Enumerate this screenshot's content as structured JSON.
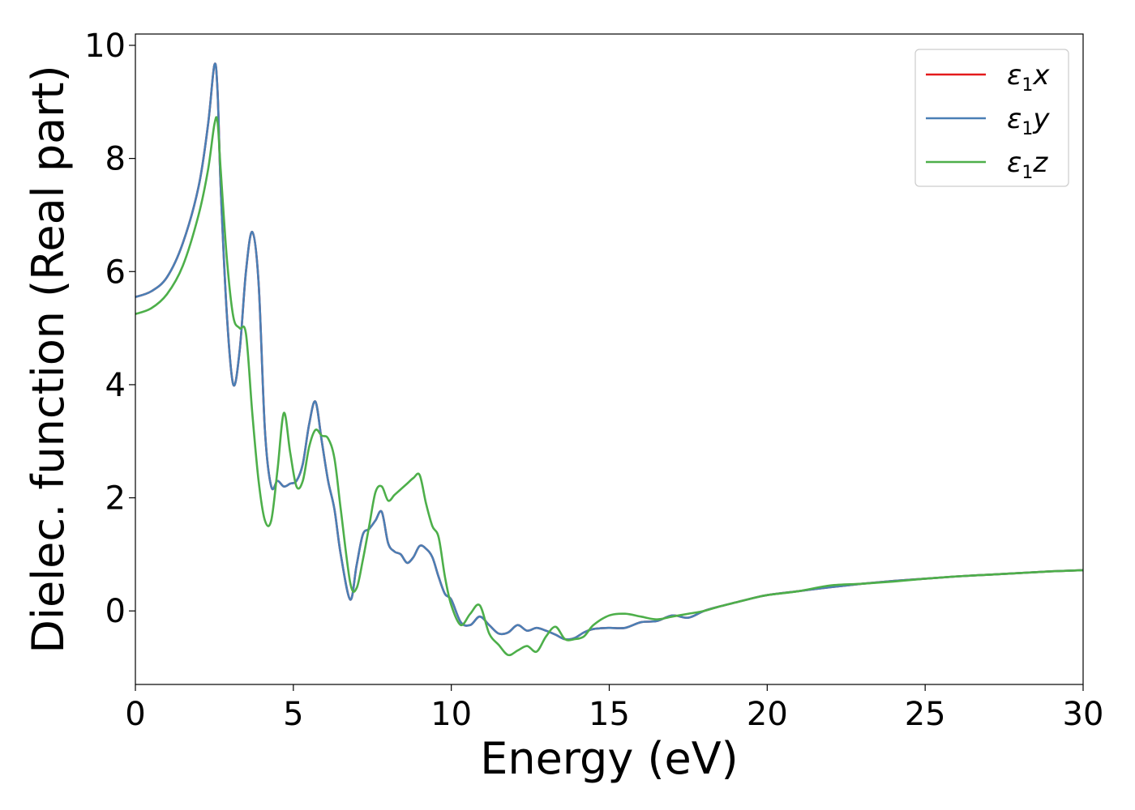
{
  "chart_data": {
    "type": "line",
    "title": "",
    "xlabel": "Energy (eV)",
    "ylabel": "Dielec. function (Real part)",
    "xlim": [
      0,
      30
    ],
    "ylim": [
      -1.3,
      10.2
    ],
    "xticks": [
      0,
      5,
      10,
      15,
      20,
      25,
      30
    ],
    "yticks": [
      0,
      2,
      4,
      6,
      8,
      10
    ],
    "grid": false,
    "legend": {
      "placement": "top-right",
      "entries": [
        {
          "symbol": "ε",
          "sub": "1",
          "var": "x"
        },
        {
          "symbol": "ε",
          "sub": "1",
          "var": "y"
        },
        {
          "symbol": "ε",
          "sub": "1",
          "var": "z"
        }
      ]
    },
    "series": [
      {
        "name": "ε1x",
        "color": "#e41a1c",
        "x": [
          0,
          0.5,
          1.0,
          1.5,
          2.0,
          2.3,
          2.5,
          2.6,
          2.7,
          2.9,
          3.1,
          3.3,
          3.5,
          3.7,
          3.9,
          4.1,
          4.3,
          4.5,
          4.7,
          4.9,
          5.1,
          5.3,
          5.5,
          5.7,
          5.9,
          6.1,
          6.3,
          6.5,
          6.8,
          7.0,
          7.2,
          7.4,
          7.6,
          7.8,
          8.0,
          8.2,
          8.4,
          8.6,
          8.8,
          9.0,
          9.2,
          9.4,
          9.6,
          9.8,
          10.0,
          10.3,
          10.6,
          10.9,
          11.2,
          11.5,
          11.8,
          12.1,
          12.4,
          12.7,
          13.0,
          13.3,
          13.6,
          13.9,
          14.2,
          14.5,
          15.0,
          15.5,
          16.0,
          16.5,
          17.0,
          17.5,
          18.0,
          18.5,
          19.0,
          19.5,
          20.0,
          21.0,
          22.0,
          23.0,
          24.0,
          25.0,
          26.0,
          27.0,
          28.0,
          29.0,
          30.0
        ],
        "y": [
          5.55,
          5.65,
          5.9,
          6.5,
          7.5,
          8.6,
          9.65,
          9.2,
          7.5,
          5.2,
          4.0,
          4.6,
          6.0,
          6.7,
          5.8,
          3.2,
          2.2,
          2.3,
          2.2,
          2.25,
          2.3,
          2.6,
          3.3,
          3.7,
          3.0,
          2.3,
          1.8,
          1.0,
          0.2,
          0.8,
          1.35,
          1.45,
          1.6,
          1.75,
          1.2,
          1.05,
          1.0,
          0.85,
          0.95,
          1.15,
          1.1,
          0.95,
          0.6,
          0.3,
          0.2,
          -0.2,
          -0.25,
          -0.1,
          -0.25,
          -0.4,
          -0.38,
          -0.25,
          -0.35,
          -0.3,
          -0.35,
          -0.42,
          -0.5,
          -0.48,
          -0.38,
          -0.32,
          -0.3,
          -0.3,
          -0.2,
          -0.18,
          -0.08,
          -0.12,
          0.0,
          0.08,
          0.15,
          0.22,
          0.28,
          0.35,
          0.42,
          0.48,
          0.53,
          0.57,
          0.61,
          0.64,
          0.67,
          0.7,
          0.72
        ]
      },
      {
        "name": "ε1y",
        "color": "#4a7fb5",
        "x": [
          0,
          0.5,
          1.0,
          1.5,
          2.0,
          2.3,
          2.5,
          2.6,
          2.7,
          2.9,
          3.1,
          3.3,
          3.5,
          3.7,
          3.9,
          4.1,
          4.3,
          4.5,
          4.7,
          4.9,
          5.1,
          5.3,
          5.5,
          5.7,
          5.9,
          6.1,
          6.3,
          6.5,
          6.8,
          7.0,
          7.2,
          7.4,
          7.6,
          7.8,
          8.0,
          8.2,
          8.4,
          8.6,
          8.8,
          9.0,
          9.2,
          9.4,
          9.6,
          9.8,
          10.0,
          10.3,
          10.6,
          10.9,
          11.2,
          11.5,
          11.8,
          12.1,
          12.4,
          12.7,
          13.0,
          13.3,
          13.6,
          13.9,
          14.2,
          14.5,
          15.0,
          15.5,
          16.0,
          16.5,
          17.0,
          17.5,
          18.0,
          18.5,
          19.0,
          19.5,
          20.0,
          21.0,
          22.0,
          23.0,
          24.0,
          25.0,
          26.0,
          27.0,
          28.0,
          29.0,
          30.0
        ],
        "y": [
          5.55,
          5.65,
          5.9,
          6.5,
          7.5,
          8.6,
          9.65,
          9.2,
          7.5,
          5.2,
          4.0,
          4.6,
          6.0,
          6.7,
          5.8,
          3.2,
          2.2,
          2.3,
          2.2,
          2.25,
          2.3,
          2.6,
          3.3,
          3.7,
          3.0,
          2.3,
          1.8,
          1.0,
          0.2,
          0.8,
          1.35,
          1.45,
          1.6,
          1.75,
          1.2,
          1.05,
          1.0,
          0.85,
          0.95,
          1.15,
          1.1,
          0.95,
          0.6,
          0.3,
          0.2,
          -0.2,
          -0.25,
          -0.1,
          -0.25,
          -0.4,
          -0.38,
          -0.25,
          -0.35,
          -0.3,
          -0.35,
          -0.42,
          -0.5,
          -0.48,
          -0.38,
          -0.32,
          -0.3,
          -0.3,
          -0.2,
          -0.18,
          -0.08,
          -0.12,
          0.0,
          0.08,
          0.15,
          0.22,
          0.28,
          0.35,
          0.42,
          0.48,
          0.53,
          0.57,
          0.61,
          0.64,
          0.67,
          0.7,
          0.72
        ]
      },
      {
        "name": "ε1z",
        "color": "#4daf4a",
        "x": [
          0,
          0.5,
          1.0,
          1.5,
          2.0,
          2.3,
          2.5,
          2.6,
          2.7,
          2.9,
          3.1,
          3.3,
          3.5,
          3.7,
          3.9,
          4.1,
          4.3,
          4.5,
          4.7,
          4.9,
          5.1,
          5.3,
          5.5,
          5.7,
          5.9,
          6.1,
          6.3,
          6.5,
          6.8,
          7.0,
          7.2,
          7.4,
          7.6,
          7.8,
          8.0,
          8.2,
          8.4,
          8.6,
          8.8,
          9.0,
          9.2,
          9.4,
          9.6,
          9.8,
          10.0,
          10.3,
          10.6,
          10.9,
          11.2,
          11.5,
          11.8,
          12.1,
          12.4,
          12.7,
          13.0,
          13.3,
          13.6,
          13.9,
          14.2,
          14.5,
          15.0,
          15.5,
          16.0,
          16.5,
          17.0,
          17.5,
          18.0,
          18.5,
          19.0,
          19.5,
          20.0,
          21.0,
          22.0,
          23.0,
          24.0,
          25.0,
          26.0,
          27.0,
          28.0,
          29.0,
          30.0
        ],
        "y": [
          5.25,
          5.35,
          5.6,
          6.1,
          7.0,
          7.8,
          8.6,
          8.65,
          7.8,
          6.2,
          5.2,
          5.0,
          4.9,
          3.5,
          2.3,
          1.6,
          1.6,
          2.5,
          3.5,
          2.8,
          2.2,
          2.3,
          2.9,
          3.2,
          3.1,
          3.05,
          2.7,
          1.8,
          0.5,
          0.4,
          0.9,
          1.5,
          2.1,
          2.2,
          1.95,
          2.05,
          2.15,
          2.25,
          2.35,
          2.4,
          1.9,
          1.5,
          1.3,
          0.6,
          0.1,
          -0.25,
          -0.05,
          0.1,
          -0.4,
          -0.6,
          -0.78,
          -0.7,
          -0.62,
          -0.72,
          -0.45,
          -0.28,
          -0.5,
          -0.5,
          -0.45,
          -0.25,
          -0.08,
          -0.05,
          -0.1,
          -0.15,
          -0.1,
          -0.05,
          0.0,
          0.08,
          0.15,
          0.22,
          0.28,
          0.35,
          0.45,
          0.48,
          0.52,
          0.57,
          0.61,
          0.64,
          0.67,
          0.7,
          0.72
        ]
      }
    ]
  }
}
